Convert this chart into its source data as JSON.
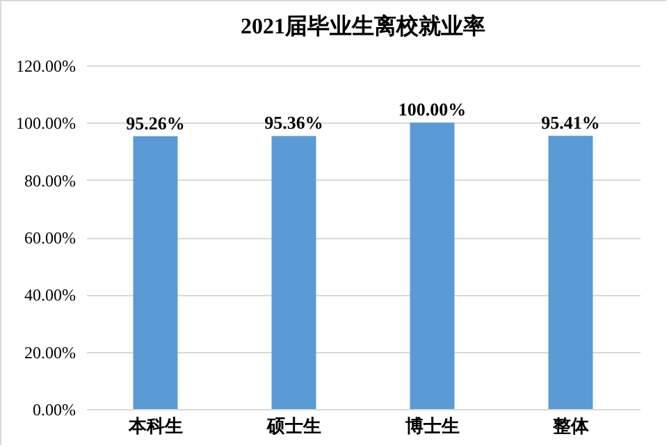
{
  "chart_data": {
    "type": "bar",
    "title": "2021届毕业生离校就业率",
    "categories": [
      "本科生",
      "硕士生",
      "博士生",
      "整体"
    ],
    "values": [
      95.26,
      95.36,
      100.0,
      95.41
    ],
    "value_labels": [
      "95.26%",
      "95.36%",
      "100.00%",
      "95.41%"
    ],
    "color": "#5b9bd5",
    "ylim": [
      0,
      120
    ],
    "yticks": [
      {
        "value": 0,
        "label": "0.00%"
      },
      {
        "value": 20,
        "label": "20.00%"
      },
      {
        "value": 40,
        "label": "40.00%"
      },
      {
        "value": 60,
        "label": "60.00%"
      },
      {
        "value": 80,
        "label": "80.00%"
      },
      {
        "value": 100,
        "label": "100.00%"
      },
      {
        "value": 120,
        "label": "120.00%"
      }
    ],
    "grid": "y"
  }
}
